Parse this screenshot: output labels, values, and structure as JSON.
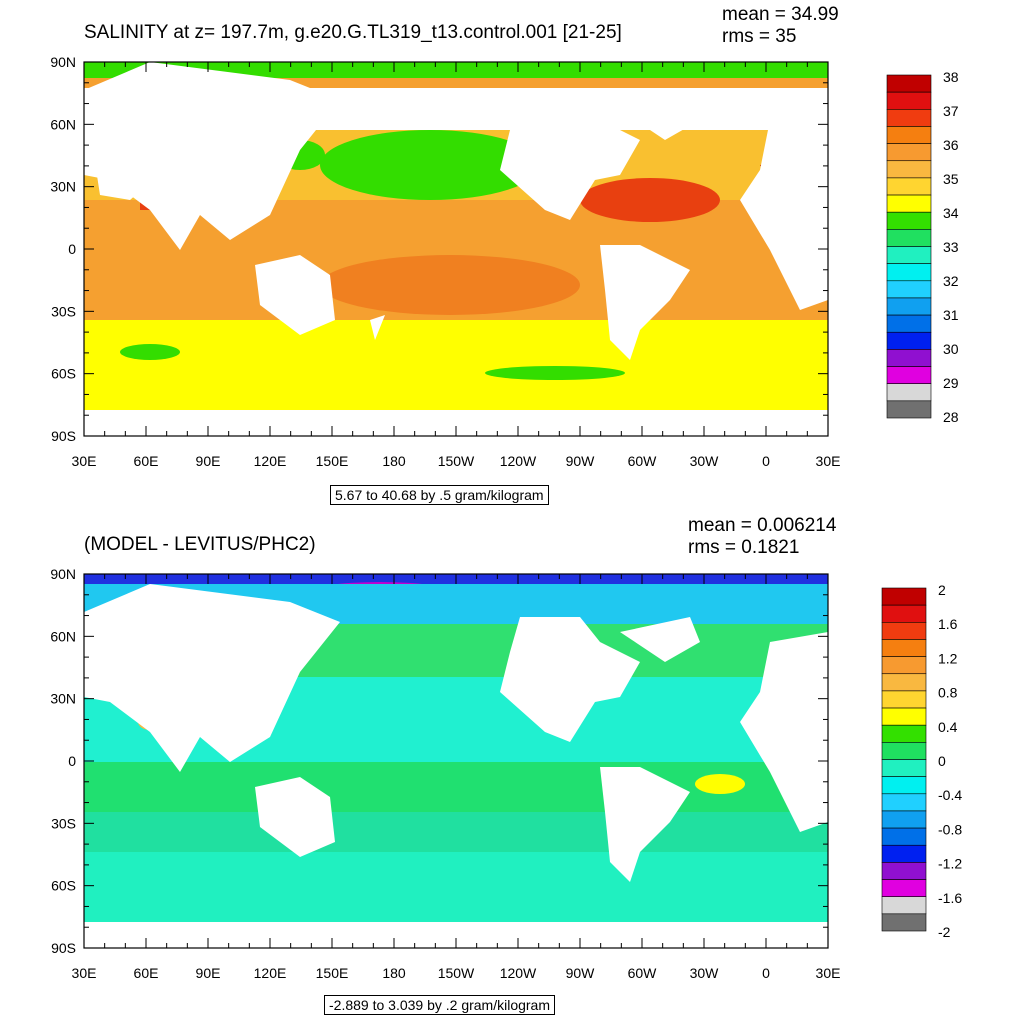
{
  "top": {
    "title": "SALINITY at z= 197.7m, g.e20.G.TL319_t13.control.001 [21-25]",
    "mean": "mean = 34.99",
    "rms": "rms = 35",
    "range": "5.67 to 40.68 by .5 gram/kilogram",
    "colorbar_labels": [
      "38",
      "37",
      "36",
      "35",
      "34",
      "33",
      "32",
      "31",
      "30",
      "29",
      "28"
    ],
    "colorbar_colors": [
      "#c00000",
      "#e01010",
      "#f03c10",
      "#f57f10",
      "#f79a30",
      "#f9b840",
      "#ffd530",
      "#ffff00",
      "#33e000",
      "#20e060",
      "#20f0c0",
      "#00f0f0",
      "#20d0ff",
      "#10a0f0",
      "#0070e8",
      "#0020f0",
      "#9010d0",
      "#e000e0",
      "#d8d8d8",
      "#707070"
    ]
  },
  "bottom": {
    "title": "(MODEL - LEVITUS/PHC2)",
    "mean": "mean = 0.006214",
    "rms": "rms = 0.1821",
    "range": "-2.889 to 3.039 by .2 gram/kilogram",
    "colorbar_labels": [
      "2",
      "1.6",
      "1.2",
      "0.8",
      "0.4",
      "0",
      "-0.4",
      "-0.8",
      "-1.2",
      "-1.6",
      "-2"
    ],
    "colorbar_colors": [
      "#c00000",
      "#e01010",
      "#f03c10",
      "#f57f10",
      "#f79a30",
      "#f9b840",
      "#ffd530",
      "#ffff00",
      "#33e000",
      "#20e060",
      "#20f0c0",
      "#00f0f0",
      "#20d0ff",
      "#10a0f0",
      "#0070e8",
      "#0020f0",
      "#9010d0",
      "#e000e0",
      "#d8d8d8",
      "#707070"
    ]
  },
  "axes": {
    "lat_labels": [
      "90N",
      "60N",
      "30N",
      "0",
      "30S",
      "60S",
      "90S"
    ],
    "lon_labels": [
      "30E",
      "60E",
      "90E",
      "120E",
      "150E",
      "180",
      "150W",
      "120W",
      "90W",
      "60W",
      "30W",
      "0",
      "30E"
    ]
  },
  "colors": {
    "land": "#ffffff",
    "frame": "#000000"
  }
}
